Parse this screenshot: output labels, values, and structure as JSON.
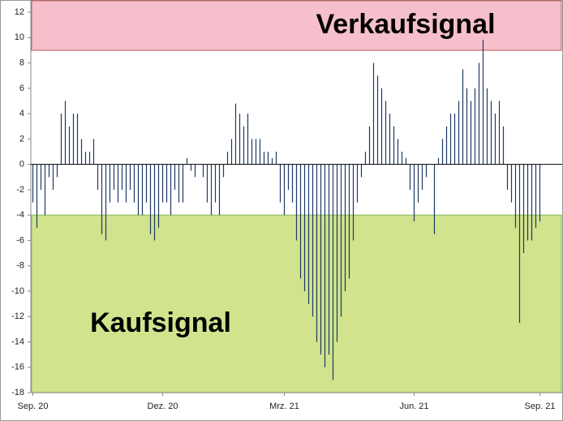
{
  "chart_data": {
    "type": "bar",
    "categories": [
      "Sep. 20",
      null,
      null,
      null,
      null,
      null,
      null,
      null,
      null,
      null,
      null,
      null,
      null,
      null,
      null,
      null,
      null,
      null,
      null,
      null,
      null,
      null,
      null,
      null,
      null,
      null,
      null,
      null,
      null,
      null,
      null,
      null,
      "Dez. 20",
      null,
      null,
      null,
      null,
      null,
      null,
      null,
      null,
      null,
      null,
      null,
      null,
      null,
      null,
      null,
      null,
      null,
      null,
      null,
      null,
      null,
      null,
      null,
      null,
      null,
      null,
      null,
      null,
      null,
      "Mrz. 21",
      null,
      null,
      null,
      null,
      null,
      null,
      null,
      null,
      null,
      null,
      null,
      null,
      null,
      null,
      null,
      null,
      null,
      null,
      null,
      null,
      null,
      null,
      null,
      null,
      null,
      null,
      null,
      null,
      null,
      null,
      null,
      "Jun. 21",
      null,
      null,
      null,
      null,
      null,
      null,
      null,
      null,
      null,
      null,
      null,
      null,
      null,
      null,
      null,
      null,
      null,
      null,
      null,
      null,
      null,
      null,
      null,
      null,
      null,
      null,
      null,
      null,
      null,
      null,
      "Sep. 21"
    ],
    "values": [
      -3,
      -5,
      -2,
      -4,
      -1,
      -2,
      -1,
      4,
      5,
      3,
      4,
      4,
      2,
      1,
      1,
      2,
      -2,
      -5.5,
      -6,
      -3,
      -2,
      -3,
      -2,
      -3,
      -2,
      -3,
      -4,
      -4,
      -3,
      -5.5,
      -6,
      -5,
      -3,
      -3,
      -4,
      -2,
      -3,
      -3,
      0.5,
      -0.5,
      -1,
      0,
      -1,
      -3,
      -4,
      -3,
      -4,
      -1,
      1,
      2,
      4.8,
      4,
      3,
      4,
      2,
      2,
      2,
      1,
      1,
      0.5,
      1,
      -3,
      -4,
      -2,
      -3,
      -6,
      -9,
      -10,
      -11,
      -12,
      -14,
      -15,
      -16,
      -15,
      -17,
      -14,
      -12,
      -10,
      -9,
      -6,
      -3,
      -1,
      1,
      3,
      8,
      7,
      6,
      5,
      4,
      3,
      2,
      1,
      0.5,
      -2,
      -4.5,
      -3,
      -2,
      -1,
      0,
      -5.5,
      0.5,
      2,
      3,
      4,
      4,
      5,
      7.5,
      6,
      5,
      6,
      8,
      9.8,
      6,
      5,
      4,
      5,
      3,
      -2,
      -3,
      -5,
      -12.5,
      -7,
      -6,
      -6,
      -5,
      -4.5
    ],
    "color": "#1f3864",
    "ylim": [
      -18,
      12.9
    ],
    "yticks": [
      -18,
      -16,
      -14,
      -12,
      -10,
      -8,
      -6,
      -4,
      -2,
      0,
      2,
      4,
      6,
      8,
      10,
      12
    ],
    "zones": [
      {
        "label": "Verkaufsignal",
        "from": 9,
        "to": 12.9,
        "color": "#f4b6c2",
        "border": "#c0504d"
      },
      {
        "label": "Kaufsignal",
        "from": -18,
        "to": -4,
        "color": "#c9e07a",
        "border": "#7fb24a"
      }
    ]
  }
}
